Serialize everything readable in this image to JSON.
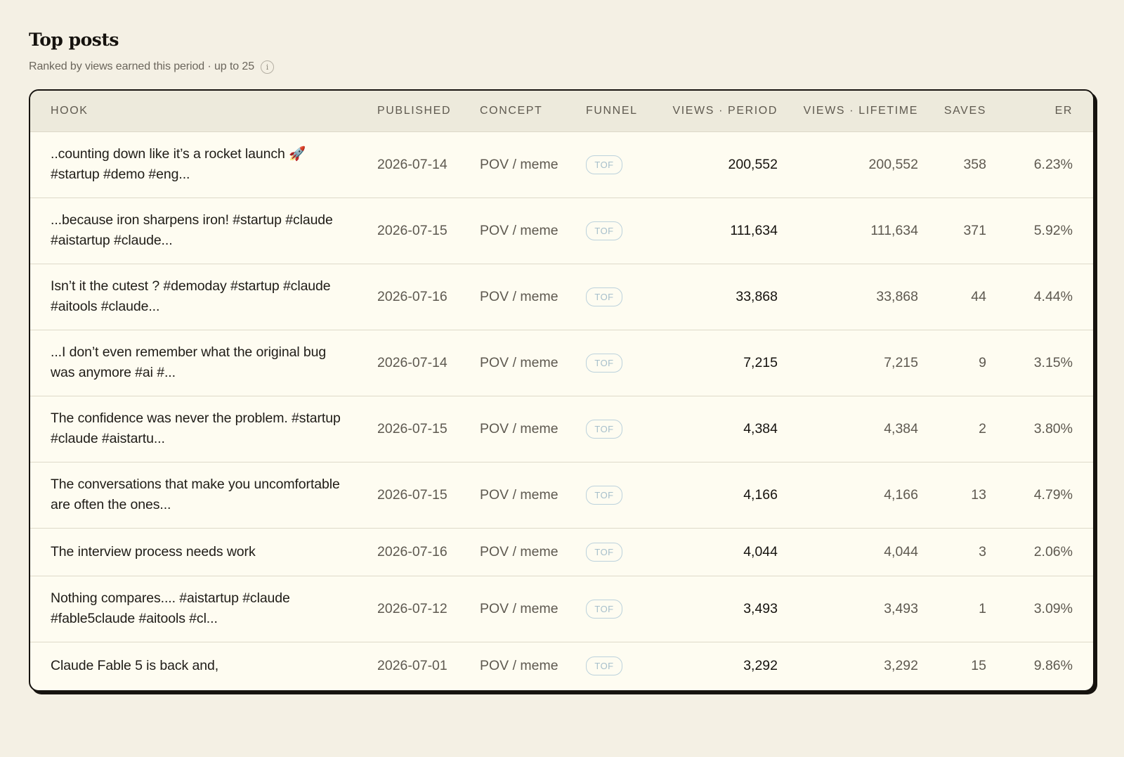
{
  "header": {
    "title": "Top posts",
    "subtitle": "Ranked by views earned this period · up to 25",
    "info_icon": "info-icon"
  },
  "table": {
    "columns": {
      "hook": "HOOK",
      "published": "PUBLISHED",
      "concept": "CONCEPT",
      "funnel": "FUNNEL",
      "views_period": "VIEWS · PERIOD",
      "views_lifetime": "VIEWS · LIFETIME",
      "saves": "SAVES",
      "er": "ER"
    },
    "rows": [
      {
        "hook": "..counting down like it’s a rocket launch 🚀 #startup #demo #eng...",
        "published": "2026-07-14",
        "concept": "POV / meme",
        "funnel": "TOF",
        "views_period": "200,552",
        "views_lifetime": "200,552",
        "saves": "358",
        "er": "6.23%"
      },
      {
        "hook": "...because iron sharpens iron! #startup #claude #aistartup #claude...",
        "published": "2026-07-15",
        "concept": "POV / meme",
        "funnel": "TOF",
        "views_period": "111,634",
        "views_lifetime": "111,634",
        "saves": "371",
        "er": "5.92%"
      },
      {
        "hook": "Isn’t it the cutest ? #demoday #startup #claude #aitools #claude...",
        "published": "2026-07-16",
        "concept": "POV / meme",
        "funnel": "TOF",
        "views_period": "33,868",
        "views_lifetime": "33,868",
        "saves": "44",
        "er": "4.44%"
      },
      {
        "hook": "...I don’t even remember what the original bug was anymore #ai #...",
        "published": "2026-07-14",
        "concept": "POV / meme",
        "funnel": "TOF",
        "views_period": "7,215",
        "views_lifetime": "7,215",
        "saves": "9",
        "er": "3.15%"
      },
      {
        "hook": "The confidence was never the problem. #startup #claude #aistartu...",
        "published": "2026-07-15",
        "concept": "POV / meme",
        "funnel": "TOF",
        "views_period": "4,384",
        "views_lifetime": "4,384",
        "saves": "2",
        "er": "3.80%"
      },
      {
        "hook": "The conversations that make you uncomfortable are often the ones...",
        "published": "2026-07-15",
        "concept": "POV / meme",
        "funnel": "TOF",
        "views_period": "4,166",
        "views_lifetime": "4,166",
        "saves": "13",
        "er": "4.79%"
      },
      {
        "hook": "The interview process needs work",
        "published": "2026-07-16",
        "concept": "POV / meme",
        "funnel": "TOF",
        "views_period": "4,044",
        "views_lifetime": "4,044",
        "saves": "3",
        "er": "2.06%"
      },
      {
        "hook": "Nothing compares.... #aistartup #claude #fable5claude #aitools #cl...",
        "published": "2026-07-12",
        "concept": "POV / meme",
        "funnel": "TOF",
        "views_period": "3,493",
        "views_lifetime": "3,493",
        "saves": "1",
        "er": "3.09%"
      },
      {
        "hook": "Claude Fable 5 is back and,",
        "published": "2026-07-01",
        "concept": "POV / meme",
        "funnel": "TOF",
        "views_period": "3,292",
        "views_lifetime": "3,292",
        "saves": "15",
        "er": "9.86%"
      }
    ]
  }
}
